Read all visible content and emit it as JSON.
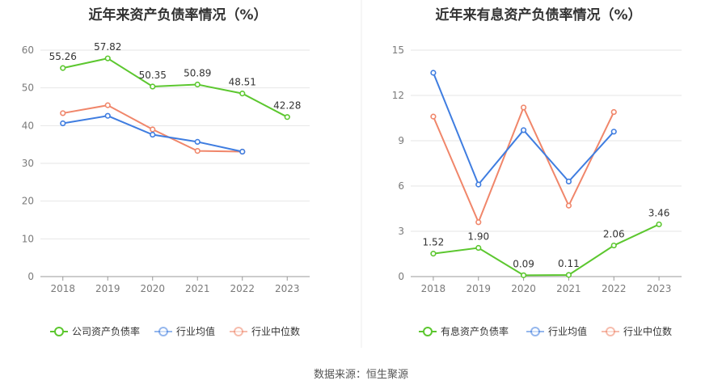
{
  "colors": {
    "green": "#5cc72f",
    "blue": "#3f7de0",
    "orange": "#f0866a",
    "grid": "#e6e6e6",
    "divider": "#eeeeee"
  },
  "source_text": "数据来源：恒生聚源",
  "chart_data": [
    {
      "type": "line",
      "title": "近年来资产负债率情况（%）",
      "x": [
        "2018",
        "2019",
        "2020",
        "2021",
        "2022",
        "2023"
      ],
      "ylim": [
        0,
        60
      ],
      "yticks": [
        0,
        10,
        20,
        30,
        40,
        50,
        60
      ],
      "grid": true,
      "legend_position": "bottom",
      "series": [
        {
          "name": "公司资产负债率",
          "color_key": "green",
          "values": [
            55.26,
            57.82,
            50.35,
            50.89,
            48.51,
            42.28
          ],
          "labels": [
            "55.26",
            "57.82",
            "50.35",
            "50.89",
            "48.51",
            "42.28"
          ]
        },
        {
          "name": "行业均值",
          "color_key": "blue",
          "values": [
            40.6,
            42.6,
            37.6,
            35.7,
            33.1,
            null
          ],
          "labels": []
        },
        {
          "name": "行业中位数",
          "color_key": "orange",
          "values": [
            43.3,
            45.4,
            39.0,
            33.3,
            33.1,
            null
          ],
          "labels": []
        }
      ]
    },
    {
      "type": "line",
      "title": "近年来有息资产负债率情况（%）",
      "x": [
        "2018",
        "2019",
        "2020",
        "2021",
        "2022",
        "2023"
      ],
      "ylim": [
        0,
        15
      ],
      "yticks": [
        0,
        3,
        6,
        9,
        12,
        15
      ],
      "grid": true,
      "legend_position": "bottom",
      "series": [
        {
          "name": "有息资产负债率",
          "color_key": "green",
          "values": [
            1.52,
            1.9,
            0.09,
            0.11,
            2.06,
            3.46
          ],
          "labels": [
            "1.52",
            "1.90",
            "0.09",
            "0.11",
            "2.06",
            "3.46"
          ]
        },
        {
          "name": "行业均值",
          "color_key": "blue",
          "values": [
            13.5,
            6.1,
            9.7,
            6.3,
            9.6,
            null
          ],
          "labels": []
        },
        {
          "name": "行业中位数",
          "color_key": "orange",
          "values": [
            10.6,
            3.6,
            11.2,
            4.7,
            10.9,
            null
          ],
          "labels": []
        }
      ]
    }
  ]
}
